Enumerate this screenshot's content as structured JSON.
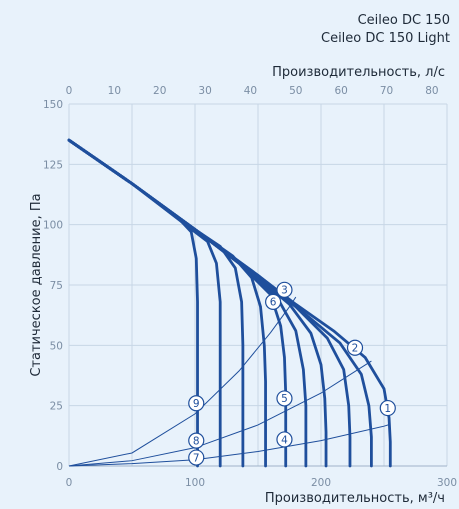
{
  "models": [
    "Ceileo DC 150",
    "Ceileo DC 150 Light"
  ],
  "colors": {
    "background": "#e8f2fb",
    "grid": "#c7d6e6",
    "curve": "#1f4f9c",
    "tick": "#7b8ea4",
    "text": "#1e2a38"
  },
  "chart_data": {
    "type": "line",
    "title": "",
    "xlabel": "Производительность, м³/ч",
    "x2label": "Производительность, л/с",
    "ylabel": "Статическое давление, Па",
    "xlim": [
      0,
      300
    ],
    "ylim": [
      0,
      150
    ],
    "x2lim": [
      0,
      83.33
    ],
    "xticks": [
      0,
      100,
      200,
      300
    ],
    "xticks_minor": [
      0,
      50,
      100,
      150,
      200,
      250,
      300
    ],
    "x2ticks": [
      0,
      10,
      20,
      30,
      40,
      50,
      60,
      70,
      80
    ],
    "yticks": [
      0,
      25,
      50,
      75,
      100,
      125,
      150
    ],
    "grid": true,
    "fan_curves": [
      {
        "name": "1",
        "points": [
          [
            0,
            135
          ],
          [
            50,
            117
          ],
          [
            100,
            98
          ],
          [
            150,
            79
          ],
          [
            180,
            67
          ],
          [
            210,
            56
          ],
          [
            235,
            45
          ],
          [
            250,
            32
          ],
          [
            254,
            20
          ],
          [
            255,
            10
          ],
          [
            255,
            0
          ]
        ]
      },
      {
        "name": "c2",
        "points": [
          [
            0,
            135
          ],
          [
            50,
            117
          ],
          [
            100,
            98
          ],
          [
            150,
            79
          ],
          [
            185,
            64
          ],
          [
            215,
            51
          ],
          [
            232,
            38
          ],
          [
            238,
            25
          ],
          [
            240,
            12
          ],
          [
            240,
            0
          ]
        ]
      },
      {
        "name": "c3",
        "points": [
          [
            0,
            135
          ],
          [
            50,
            117
          ],
          [
            100,
            98
          ],
          [
            150,
            78
          ],
          [
            180,
            66
          ],
          [
            205,
            53
          ],
          [
            218,
            40
          ],
          [
            222,
            25
          ],
          [
            223,
            12
          ],
          [
            223,
            0
          ]
        ]
      },
      {
        "name": "c4",
        "points": [
          [
            0,
            135
          ],
          [
            50,
            117
          ],
          [
            100,
            98
          ],
          [
            150,
            78
          ],
          [
            175,
            67
          ],
          [
            192,
            55
          ],
          [
            200,
            42
          ],
          [
            203,
            28
          ],
          [
            204,
            14
          ],
          [
            204,
            0
          ]
        ]
      },
      {
        "name": "c5",
        "points": [
          [
            0,
            135
          ],
          [
            50,
            117
          ],
          [
            100,
            98
          ],
          [
            140,
            82
          ],
          [
            165,
            70
          ],
          [
            180,
            56
          ],
          [
            186,
            40
          ],
          [
            188,
            25
          ],
          [
            188,
            12
          ],
          [
            188,
            0
          ]
        ]
      },
      {
        "name": "c6",
        "points": [
          [
            0,
            135
          ],
          [
            50,
            117
          ],
          [
            100,
            98
          ],
          [
            135,
            84
          ],
          [
            160,
            71
          ],
          [
            168,
            58
          ],
          [
            171,
            45
          ],
          [
            172,
            30
          ],
          [
            172,
            15
          ],
          [
            172,
            0
          ]
        ]
      },
      {
        "name": "c7",
        "points": [
          [
            0,
            135
          ],
          [
            50,
            117
          ],
          [
            100,
            98
          ],
          [
            130,
            87
          ],
          [
            145,
            78
          ],
          [
            152,
            66
          ],
          [
            155,
            50
          ],
          [
            156,
            35
          ],
          [
            156,
            17
          ],
          [
            156,
            0
          ]
        ]
      },
      {
        "name": "c8",
        "points": [
          [
            0,
            135
          ],
          [
            50,
            117
          ],
          [
            100,
            98
          ],
          [
            120,
            91
          ],
          [
            132,
            82
          ],
          [
            137,
            68
          ],
          [
            138,
            50
          ],
          [
            138,
            30
          ],
          [
            138,
            15
          ],
          [
            138,
            0
          ]
        ]
      },
      {
        "name": "c9",
        "points": [
          [
            0,
            135
          ],
          [
            50,
            117
          ],
          [
            95,
            99
          ],
          [
            110,
            93
          ],
          [
            117,
            84
          ],
          [
            120,
            68
          ],
          [
            120,
            50
          ],
          [
            120,
            30
          ],
          [
            120,
            15
          ],
          [
            120,
            0
          ]
        ]
      },
      {
        "name": "c10",
        "points": [
          [
            0,
            135
          ],
          [
            50,
            117
          ],
          [
            88,
            102
          ],
          [
            97,
            97
          ],
          [
            101,
            86
          ],
          [
            102,
            68
          ],
          [
            102,
            50
          ],
          [
            102,
            30
          ],
          [
            102,
            15
          ],
          [
            102,
            0
          ]
        ]
      }
    ],
    "system_curves": [
      {
        "name": "1-4-7",
        "points": [
          [
            0,
            0
          ],
          [
            50,
            1
          ],
          [
            100,
            2.6
          ],
          [
            150,
            6
          ],
          [
            200,
            10.5
          ],
          [
            250,
            16.5
          ],
          [
            255,
            17.3
          ]
        ]
      },
      {
        "name": "2-5-8",
        "points": [
          [
            0,
            0
          ],
          [
            50,
            2.2
          ],
          [
            100,
            7.6
          ],
          [
            150,
            17
          ],
          [
            200,
            30.2
          ],
          [
            240,
            43.5
          ]
        ]
      },
      {
        "name": "3-6-9",
        "points": [
          [
            0,
            0
          ],
          [
            50,
            5.4
          ],
          [
            100,
            21.6
          ],
          [
            135,
            39.4
          ],
          [
            160,
            55.3
          ],
          [
            175,
            66
          ],
          [
            180,
            70
          ]
        ]
      }
    ],
    "markers": [
      {
        "label": "1",
        "x": 253,
        "y": 24
      },
      {
        "label": "2",
        "x": 227,
        "y": 49
      },
      {
        "label": "3",
        "x": 171,
        "y": 73
      },
      {
        "label": "4",
        "x": 171,
        "y": 11
      },
      {
        "label": "5",
        "x": 171,
        "y": 28
      },
      {
        "label": "6",
        "x": 162,
        "y": 68
      },
      {
        "label": "7",
        "x": 101,
        "y": 3.5
      },
      {
        "label": "8",
        "x": 101,
        "y": 10.5
      },
      {
        "label": "9",
        "x": 101,
        "y": 26
      }
    ]
  }
}
